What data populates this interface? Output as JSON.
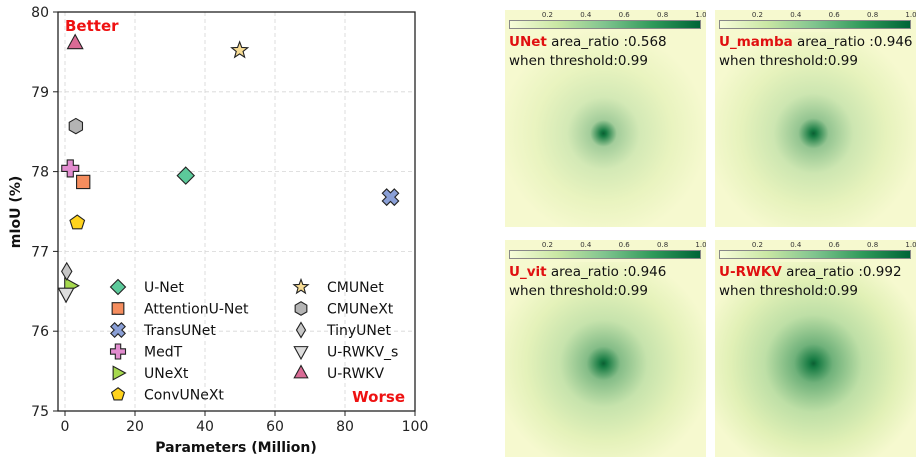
{
  "chart_data": [
    {
      "type": "scatter",
      "title": "",
      "xlabel": "Parameters (Million)",
      "ylabel": "mIoU (%)",
      "xlim": [
        -2,
        100
      ],
      "ylim": [
        75,
        80
      ],
      "xticks": [
        0,
        20,
        40,
        60,
        80,
        100
      ],
      "yticks": [
        75,
        76,
        77,
        78,
        79,
        80
      ],
      "grid": true,
      "legend_position": "bottom, two columns",
      "annotations": {
        "better": "Better",
        "worse": "Worse"
      },
      "series": [
        {
          "name": "U-Net",
          "marker": "diamond",
          "color": "#5cc99a",
          "x": 34.5,
          "y": 77.95
        },
        {
          "name": "AttentionU-Net",
          "marker": "square",
          "color": "#f58d5e",
          "x": 5.2,
          "y": 77.87
        },
        {
          "name": "TransUNet",
          "marker": "x",
          "color": "#8a9fd6",
          "x": 93.0,
          "y": 77.68
        },
        {
          "name": "MedT",
          "marker": "plus",
          "color": "#e28ccf",
          "x": 1.5,
          "y": 78.04
        },
        {
          "name": "UNeXt",
          "marker": "triangle-right",
          "color": "#a6d94e",
          "x": 1.5,
          "y": 76.57
        },
        {
          "name": "ConvUNeXt",
          "marker": "pentagon",
          "color": "#ffd31c",
          "x": 3.5,
          "y": 77.36
        },
        {
          "name": "CMUNet",
          "marker": "star",
          "color": "#f7dc94",
          "x": 49.9,
          "y": 79.52
        },
        {
          "name": "CMUNeXt",
          "marker": "hexagon",
          "color": "#b4b4b4",
          "x": 3.1,
          "y": 78.57
        },
        {
          "name": "TinyUNet",
          "marker": "thin-diamond",
          "color": "#c6c6c6",
          "x": 0.5,
          "y": 76.75
        },
        {
          "name": "U-RWKV_s",
          "marker": "triangle-down",
          "color": "#dddddd",
          "x": 0.3,
          "y": 76.47
        },
        {
          "name": "U-RWKV",
          "marker": "triangle-up",
          "color": "#d96b95",
          "x": 2.9,
          "y": 79.61
        }
      ]
    },
    {
      "type": "heatmap",
      "colorbar_ticks": [
        "0.2",
        "0.4",
        "0.6",
        "0.8",
        "1.0"
      ],
      "panels": [
        {
          "model": "UNet",
          "area_label": "area_ratio :0.568",
          "threshold_label": "when threshold:0.99",
          "area_ratio": 0.568,
          "intensity": 0.45
        },
        {
          "model": "U_mamba",
          "area_label": "area_ratio :0.946",
          "threshold_label": "when threshold:0.99",
          "area_ratio": 0.946,
          "intensity": 0.6
        },
        {
          "model": "U_vit",
          "area_label": "area_ratio :0.946",
          "threshold_label": "when threshold:0.99",
          "area_ratio": 0.946,
          "intensity": 0.75
        },
        {
          "model": "U-RWKV",
          "area_label": "area_ratio :0.992",
          "threshold_label": "when threshold:0.99",
          "area_ratio": 0.992,
          "intensity": 0.95
        }
      ]
    }
  ]
}
